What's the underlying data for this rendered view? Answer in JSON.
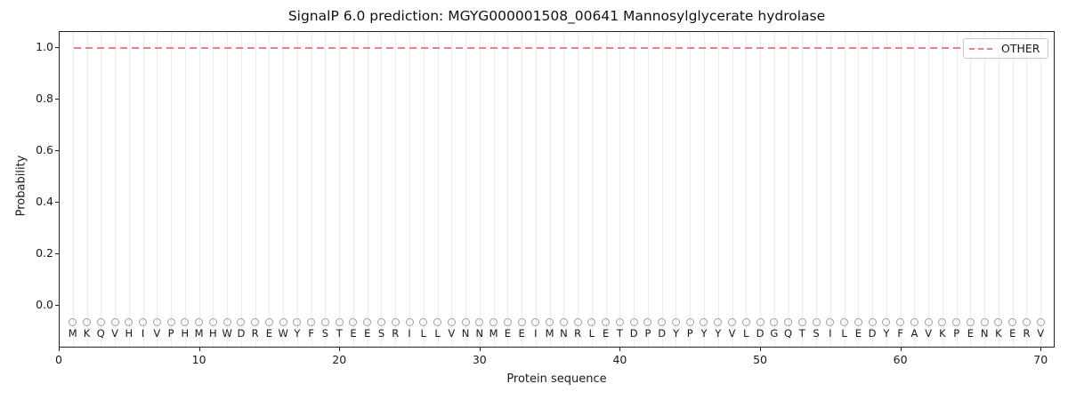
{
  "figure": {
    "title": "SignalP 6.0 prediction: MGYG000001508_00641 Mannosylglycerate hydrolase",
    "xlabel": "Protein sequence",
    "ylabel": "Probability"
  },
  "legend": {
    "position": "upper right",
    "entries": [
      {
        "label": "OTHER",
        "color": "#ee8282",
        "linestyle": "dashed"
      }
    ]
  },
  "colors": {
    "other_line": "#ee8282",
    "grid": "#ececec",
    "marker_stroke": "#9e9e9e",
    "spine": "#222222",
    "text": "#1a1a1a"
  },
  "chart_data": {
    "type": "line",
    "title": "SignalP 6.0 prediction: MGYG000001508_00641 Mannosylglycerate hydrolase",
    "xlabel": "Protein sequence",
    "ylabel": "Probability",
    "xlim": [
      0,
      71
    ],
    "ylim": [
      -0.17,
      1.07
    ],
    "xticks": [
      0,
      10,
      20,
      30,
      40,
      50,
      60,
      70
    ],
    "yticks": [
      0.0,
      0.2,
      0.4,
      0.6,
      0.8,
      1.0
    ],
    "grid": "vertical line at every residue position, light gray",
    "legend_position": "upper right",
    "series": [
      {
        "name": "OTHER",
        "color": "#ee8282",
        "linestyle": "dashed",
        "x_start": 1,
        "x_end": 70,
        "y_constant": 1.0
      }
    ],
    "sequence": "MKQVHIVPHMHWDREWYFSTEESRILLVNNMEEIMNRLETDPDYPYYVLDGQTSILEDYFAVKPENKERV",
    "sequence_positions": {
      "first": 1,
      "last": 70
    },
    "sequence_marker_y": -0.066
  }
}
